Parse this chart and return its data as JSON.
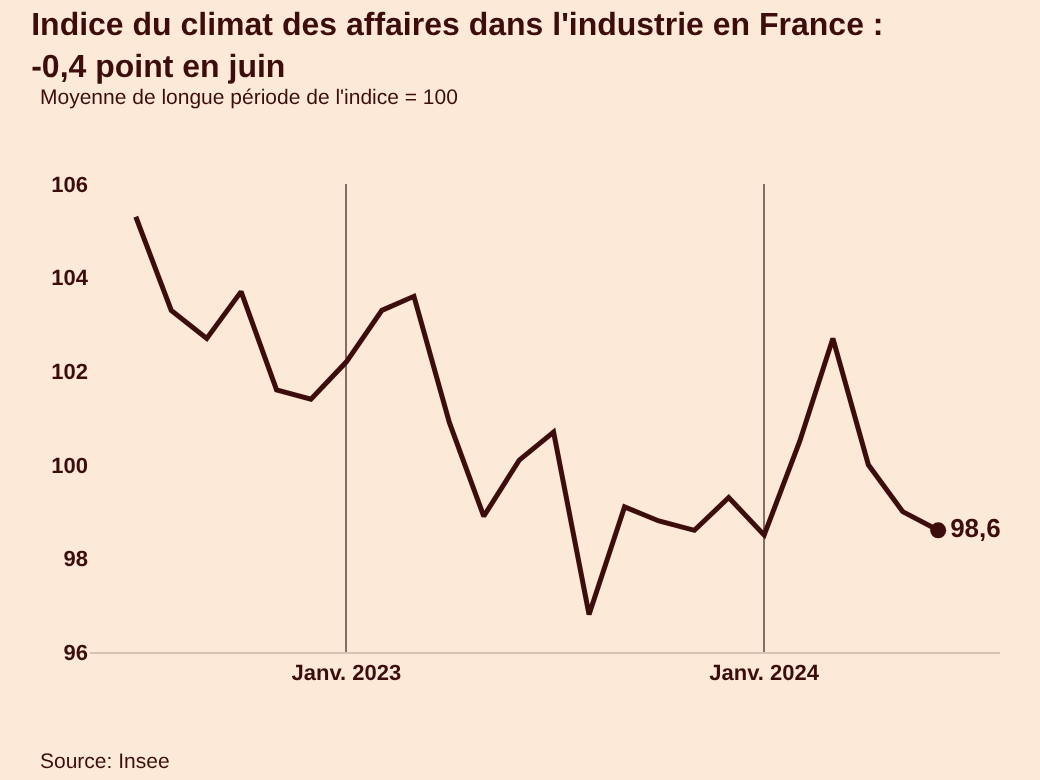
{
  "chart_data": {
    "type": "line",
    "title": "Indice du climat des affaires dans l'industrie en France : -0,4 point en juin",
    "subtitle": "Moyenne de longue période de l'indice = 100",
    "annotations": [
      "Source: Insee"
    ],
    "x": [
      "2022-07",
      "2022-08",
      "2022-09",
      "2022-10",
      "2022-11",
      "2022-12",
      "2023-01",
      "2023-02",
      "2023-03",
      "2023-04",
      "2023-05",
      "2023-06",
      "2023-07",
      "2023-08",
      "2023-09",
      "2023-10",
      "2023-11",
      "2023-12",
      "2024-01",
      "2024-02",
      "2024-03",
      "2024-04",
      "2024-05",
      "2024-06"
    ],
    "series": [
      {
        "color": "#3d0d0d",
        "values": [
          105.3,
          103.3,
          102.7,
          103.7,
          101.6,
          101.4,
          102.2,
          103.3,
          103.6,
          100.9,
          98.9,
          100.1,
          100.7,
          96.8,
          99.1,
          98.8,
          98.6,
          99.3,
          98.5,
          100.5,
          102.7,
          100.0,
          99.0,
          98.6
        ],
        "value_labels": [
          null,
          null,
          null,
          null,
          null,
          null,
          null,
          null,
          null,
          null,
          null,
          null,
          null,
          null,
          null,
          null,
          null,
          null,
          null,
          null,
          null,
          null,
          null,
          "98,6"
        ]
      }
    ],
    "xlim": [
      "2022-05-22",
      "2024-07-25"
    ],
    "xticks": [
      {
        "value": "2023-01",
        "label": "Janv. 2023"
      },
      {
        "value": "2024-01",
        "label": "Janv. 2024"
      }
    ],
    "ylim": [
      96,
      106
    ],
    "yticks": [
      96,
      98,
      100,
      102,
      104,
      106
    ],
    "grid": "x",
    "marker": "none",
    "line_style": "solid"
  }
}
